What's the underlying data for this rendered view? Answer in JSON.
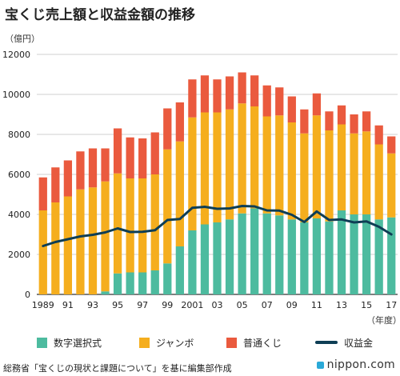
{
  "header": {
    "title": "宝くじ売上額と収益金額の推移",
    "unit": "（億円）",
    "year_unit": "（年度）"
  },
  "legend": {
    "items": [
      {
        "label": "数字選択式",
        "color": "#4dbb9f",
        "kind": "box"
      },
      {
        "label": "ジャンボ",
        "color": "#f5ae1e",
        "kind": "box"
      },
      {
        "label": "普通くじ",
        "color": "#ea5a3e",
        "kind": "box"
      },
      {
        "label": "収益金",
        "color": "#0e3e55",
        "kind": "line"
      }
    ]
  },
  "footer": {
    "source": "総務省「宝くじの現状と課題について」を基に編集部作成",
    "brand": "nippon.com"
  },
  "chart_data": {
    "type": "bar",
    "stacked": true,
    "title": "宝くじ売上額と収益金額の推移",
    "ylabel": "（億円）",
    "xlabel": "（年度）",
    "ylim": [
      0,
      12000
    ],
    "yticks": [
      0,
      2000,
      4000,
      6000,
      8000,
      10000,
      12000
    ],
    "x": [
      1989,
      1990,
      1991,
      1992,
      1993,
      1994,
      1995,
      1996,
      1997,
      1998,
      1999,
      2000,
      2001,
      2002,
      2003,
      2004,
      2005,
      2006,
      2007,
      2008,
      2009,
      2010,
      2011,
      2012,
      2013,
      2014,
      2015,
      2016,
      2017
    ],
    "xtick_labels": [
      "1989",
      "91",
      "93",
      "95",
      "97",
      "99",
      "2001",
      "03",
      "05",
      "07",
      "09",
      "11",
      "13",
      "15",
      "17"
    ],
    "xtick_years": [
      1989,
      1991,
      1993,
      1995,
      1997,
      1999,
      2001,
      2003,
      2005,
      2007,
      2009,
      2011,
      2013,
      2015,
      2017
    ],
    "series": [
      {
        "name": "数字選択式",
        "color": "#4dbb9f",
        "values": [
          0,
          0,
          0,
          0,
          0,
          150,
          1050,
          1100,
          1100,
          1200,
          1550,
          2400,
          3200,
          3500,
          3600,
          3750,
          4050,
          4300,
          4050,
          3950,
          3750,
          3600,
          3800,
          3650,
          4200,
          4000,
          4000,
          3750,
          3850
        ]
      },
      {
        "name": "ジャンボ",
        "color": "#f5ae1e",
        "values": [
          4200,
          4600,
          4900,
          5250,
          5350,
          5500,
          5000,
          4700,
          4700,
          4800,
          5700,
          5250,
          5650,
          5600,
          5500,
          5500,
          5500,
          5100,
          4850,
          5000,
          4850,
          4450,
          5150,
          4550,
          4300,
          4050,
          4150,
          3750,
          3200
        ]
      },
      {
        "name": "普通くじ",
        "color": "#ea5a3e",
        "values": [
          1650,
          1750,
          1800,
          1900,
          1950,
          1650,
          2250,
          2050,
          2000,
          2100,
          2050,
          1950,
          1900,
          1850,
          1650,
          1650,
          1550,
          1550,
          1550,
          1400,
          1300,
          1200,
          1100,
          950,
          950,
          950,
          1000,
          950,
          850
        ]
      },
      {
        "name": "収益金",
        "color": "#0e3e55",
        "type": "line",
        "values": [
          2420,
          2620,
          2760,
          2900,
          2980,
          3100,
          3300,
          3120,
          3130,
          3210,
          3720,
          3770,
          4330,
          4380,
          4280,
          4300,
          4420,
          4400,
          4200,
          4190,
          3980,
          3620,
          4150,
          3720,
          3750,
          3600,
          3650,
          3380,
          3000
        ]
      }
    ]
  }
}
